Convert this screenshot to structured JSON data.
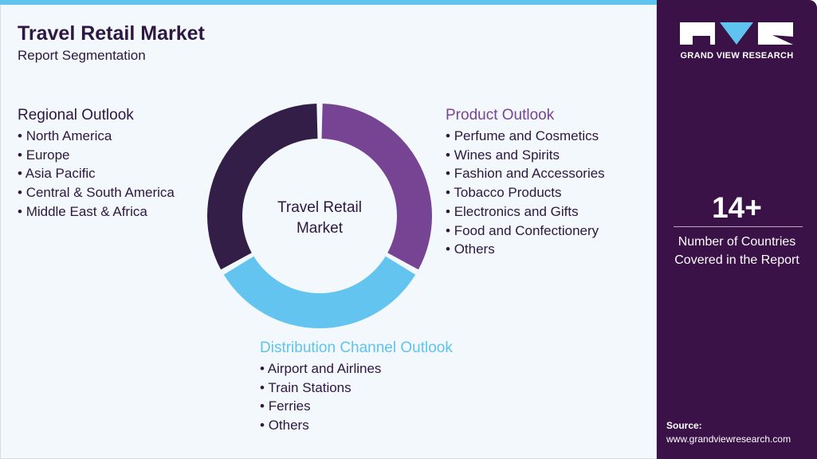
{
  "header": {
    "title": "Travel Retail Market",
    "subtitle": "Report Segmentation"
  },
  "regional": {
    "heading": "Regional Outlook",
    "items": [
      "North America",
      "Europe",
      "Asia Pacific",
      "Central & South America",
      "Middle East & Africa"
    ]
  },
  "product": {
    "heading": "Product Outlook",
    "items": [
      "Perfume and Cosmetics",
      "Wines and Spirits",
      "Fashion and Accessories",
      "Tobacco Products",
      "Electronics and Gifts",
      "Food and Confectionery",
      "Others"
    ]
  },
  "distribution": {
    "heading": "Distribution Channel Outlook",
    "items": [
      "Airport and Airlines",
      "Train Stations",
      "Ferries",
      "Others"
    ]
  },
  "donut": {
    "center_line1": "Travel Retail",
    "center_line2": "Market",
    "segments": [
      {
        "segment": "Product Outlook",
        "color": "#774493"
      },
      {
        "segment": "Distribution Channel Outlook",
        "color": "#63c4ef"
      },
      {
        "segment": "Regional Outlook",
        "color": "#331e47"
      }
    ]
  },
  "sidebar": {
    "logo_text": "GRAND VIEW RESEARCH",
    "stat_value": "14+",
    "stat_label_line1": "Number of Countries",
    "stat_label_line2": "Covered in the Report",
    "source_label": "Source:",
    "source_url": "www.grandviewresearch.com"
  },
  "colors": {
    "primary": "#3a1248",
    "accent": "#5fc3ef",
    "purple": "#774493"
  }
}
